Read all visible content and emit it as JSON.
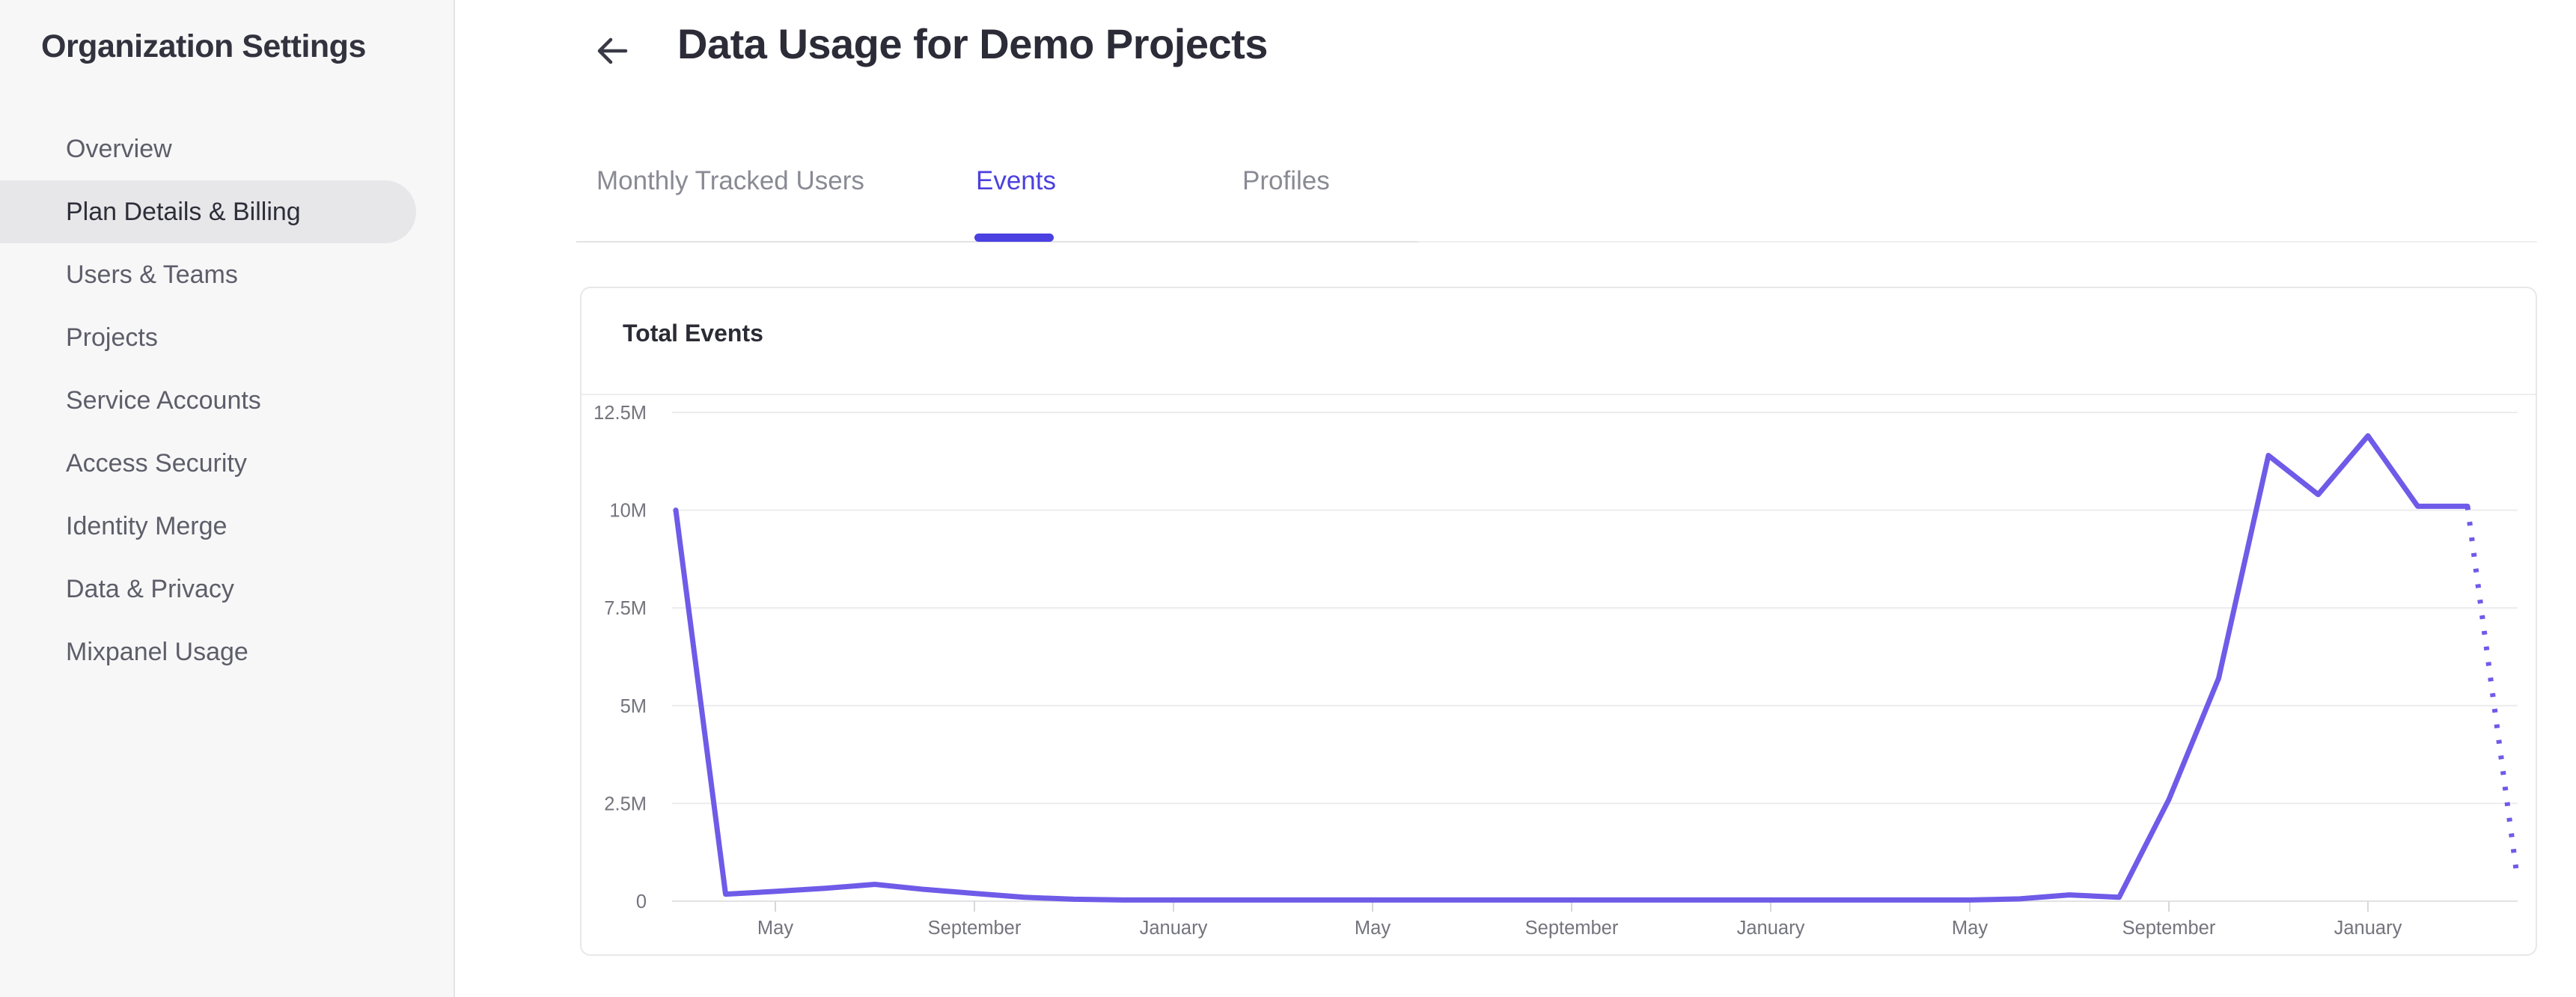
{
  "sidebar": {
    "title": "Organization Settings",
    "items": [
      {
        "label": "Overview",
        "selected": false
      },
      {
        "label": "Plan Details & Billing",
        "selected": true
      },
      {
        "label": "Users & Teams",
        "selected": false
      },
      {
        "label": "Projects",
        "selected": false
      },
      {
        "label": "Service Accounts",
        "selected": false
      },
      {
        "label": "Access Security",
        "selected": false
      },
      {
        "label": "Identity Merge",
        "selected": false
      },
      {
        "label": "Data & Privacy",
        "selected": false
      },
      {
        "label": "Mixpanel Usage",
        "selected": false
      }
    ]
  },
  "header": {
    "title": "Data Usage for Demo Projects",
    "back_icon": "left-arrow"
  },
  "tabs": [
    {
      "label": "Monthly Tracked Users",
      "active": false
    },
    {
      "label": "Events",
      "active": true
    },
    {
      "label": "Profiles",
      "active": false
    }
  ],
  "card": {
    "title": "Total Events"
  },
  "colors": {
    "accent": "#4B40E0",
    "line": "#6E5BE8",
    "sidebar_bg": "#F7F7F8",
    "pill_bg": "#E7E7E9",
    "text_dark": "#2C2C38",
    "item_gray": "#5E5E6A",
    "tab_gray": "#8A8A94",
    "grid": "#ECECEF",
    "axis_line": "#E2E2E5",
    "axis_label": "#74747E",
    "card_border": "#E8E8EA"
  },
  "chart_data": {
    "type": "line",
    "title": "Total Events",
    "x_unit": "month",
    "series": [
      {
        "name": "Total Events",
        "color": "#6E5BE8",
        "values_millions": [
          10,
          0.18,
          0.25,
          0.33,
          0.43,
          0.3,
          0.2,
          0.1,
          0.05,
          0.03,
          0.03,
          0.03,
          0.03,
          0.03,
          0.03,
          0.03,
          0.03,
          0.03,
          0.03,
          0.03,
          0.03,
          0.03,
          0.03,
          0.03,
          0.03,
          0.03,
          0.03,
          0.06,
          0.16,
          0.1,
          2.6,
          5.7,
          11.4,
          10.4,
          11.9,
          10.1,
          10.1,
          0.6
        ]
      }
    ],
    "dashed_tail_from_index": 36,
    "ylim_millions": [
      0,
      12.5
    ],
    "ytick_labels": [
      "12.5M",
      "10M",
      "7.5M",
      "5M",
      "2.5M",
      "0"
    ],
    "ytick_values_millions": [
      12.5,
      10,
      7.5,
      5,
      2.5,
      0
    ],
    "xtick_labels": [
      "May",
      "September",
      "January",
      "May",
      "September",
      "January",
      "May",
      "September",
      "January"
    ],
    "xtick_point_indices": [
      2,
      6,
      10,
      14,
      18,
      22,
      26,
      30,
      34
    ],
    "grid": "horizontal",
    "legend": "none"
  }
}
